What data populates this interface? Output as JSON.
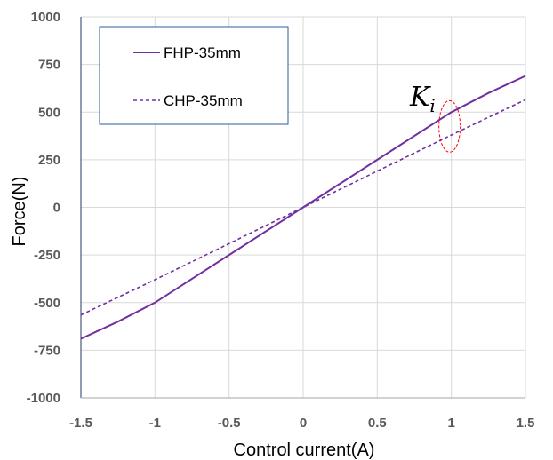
{
  "chart_data": {
    "type": "line",
    "xlabel": "Control current(A)",
    "ylabel": "Force(N)",
    "xlim": [
      -1.5,
      1.5
    ],
    "ylim": [
      -1000,
      1000
    ],
    "x_ticks": [
      "-1.5",
      "-1",
      "-0.5",
      "0",
      "0.5",
      "1",
      "1.5"
    ],
    "y_ticks": [
      "1000",
      "750",
      "500",
      "250",
      "0",
      "-250",
      "-500",
      "-750",
      "-1000"
    ],
    "grid": true,
    "legend_position": "top-left",
    "series": [
      {
        "name": "FHP-35mm",
        "line_style": "solid",
        "color": "#7030A0",
        "x": [
          -1.5,
          -1.25,
          -1.0,
          -0.5,
          0.0,
          0.5,
          1.0,
          1.25,
          1.5
        ],
        "y": [
          -690,
          -600,
          -500,
          -250,
          0,
          250,
          500,
          600,
          690
        ]
      },
      {
        "name": "CHP-35mm",
        "line_style": "dashed",
        "color": "#7030A0",
        "x": [
          -1.5,
          -1.0,
          -0.5,
          0.0,
          0.5,
          1.0,
          1.5
        ],
        "y": [
          -565,
          -380,
          -190,
          0,
          190,
          380,
          565
        ]
      }
    ],
    "annotation": {
      "symbol": "K",
      "subscript": "i",
      "marker_x": 1.0,
      "marker_y": 425,
      "marker_color": "#FF0000"
    }
  }
}
